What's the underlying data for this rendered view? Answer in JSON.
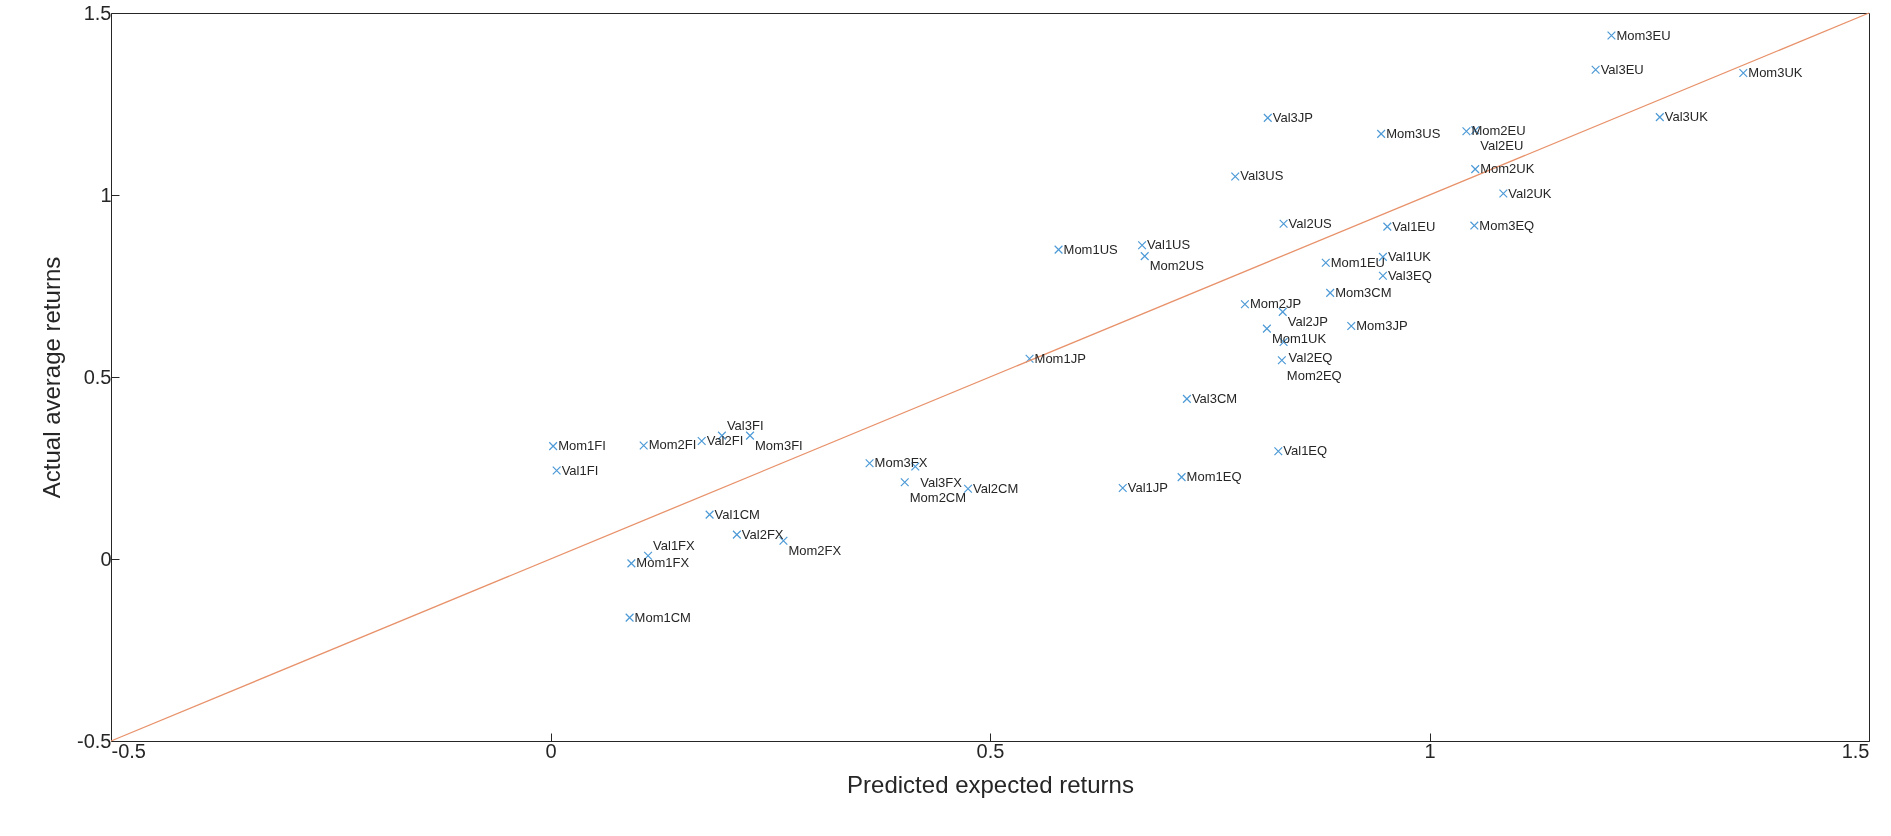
{
  "chart_data": {
    "type": "scatter",
    "xlabel": "Predicted expected returns",
    "ylabel": "Actual average returns",
    "xlim": [
      -0.5,
      1.5
    ],
    "ylim": [
      -0.5,
      1.5
    ],
    "xticks": [
      -0.5,
      0,
      0.5,
      1,
      1.5
    ],
    "yticks": [
      -0.5,
      0,
      0.5,
      1,
      1.5
    ],
    "grid": false,
    "marker": "cross",
    "series": [
      {
        "color": "#4d9ad6",
        "x": [
          1.207,
          1.189,
          1.357,
          1.262,
          0.816,
          0.945,
          1.042,
          1.052,
          1.052,
          1.084,
          0.779,
          0.834,
          0.952,
          1.051,
          0.882,
          0.947,
          0.947,
          0.578,
          0.673,
          0.676,
          0.887,
          0.79,
          0.833,
          0.815,
          0.911,
          0.834,
          0.832,
          0.545,
          0.724,
          0.828,
          0.718,
          0.651,
          0.363,
          0.415,
          0.403,
          0.475,
          0.003,
          0.007,
          0.106,
          0.172,
          0.195,
          0.227,
          0.181,
          0.212,
          0.265,
          0.092,
          0.111,
          0.09
        ],
        "values": [
          1.438,
          1.344,
          1.335,
          1.214,
          1.212,
          1.168,
          1.175,
          1.178,
          1.071,
          1.004,
          1.051,
          0.921,
          0.913,
          0.916,
          0.814,
          0.83,
          0.778,
          0.85,
          0.862,
          0.832,
          0.731,
          0.7,
          0.679,
          0.633,
          0.64,
          0.596,
          0.546,
          0.55,
          0.44,
          0.296,
          0.225,
          0.195,
          0.263,
          0.254,
          0.211,
          0.193,
          0.31,
          0.243,
          0.312,
          0.324,
          0.339,
          0.339,
          0.122,
          0.067,
          0.05,
          -0.012,
          0.009,
          -0.161
        ]
      },
      {
        "type": "line",
        "color": "#e8926b",
        "x": [
          -0.5,
          1.5
        ],
        "values": [
          -0.5,
          1.5
        ],
        "marker": "none"
      }
    ],
    "annotations": [
      {
        "text": "Mom3EU",
        "x": 1.207,
        "y": 1.438
      },
      {
        "text": "Val3EU",
        "x": 1.189,
        "y": 1.344
      },
      {
        "text": "Mom3UK",
        "x": 1.357,
        "y": 1.335
      },
      {
        "text": "Val3UK",
        "x": 1.262,
        "y": 1.214
      },
      {
        "text": "Val3JP",
        "x": 0.816,
        "y": 1.212
      },
      {
        "text": "Mom3US",
        "x": 0.945,
        "y": 1.168
      },
      {
        "text": "Mom2EU",
        "x": 1.042,
        "y": 1.175
      },
      {
        "text": "Val2EU",
        "x": 1.052,
        "y": 1.178
      },
      {
        "text": "Mom2UK",
        "x": 1.052,
        "y": 1.071
      },
      {
        "text": "Val2UK",
        "x": 1.084,
        "y": 1.004
      },
      {
        "text": "Val3US",
        "x": 0.779,
        "y": 1.051
      },
      {
        "text": "Val2US",
        "x": 0.834,
        "y": 0.921
      },
      {
        "text": "Val1EU",
        "x": 0.952,
        "y": 0.913
      },
      {
        "text": "Mom3EQ",
        "x": 1.051,
        "y": 0.916
      },
      {
        "text": "Mom1EU",
        "x": 0.882,
        "y": 0.814
      },
      {
        "text": "Val1UK",
        "x": 0.947,
        "y": 0.83
      },
      {
        "text": "Val3EQ",
        "x": 0.947,
        "y": 0.778
      },
      {
        "text": "Mom1US",
        "x": 0.578,
        "y": 0.85
      },
      {
        "text": "Val1US",
        "x": 0.673,
        "y": 0.862
      },
      {
        "text": "Mom2US",
        "x": 0.676,
        "y": 0.832
      },
      {
        "text": "Mom3CM",
        "x": 0.887,
        "y": 0.731
      },
      {
        "text": "Mom2JP",
        "x": 0.79,
        "y": 0.7
      },
      {
        "text": "Val2JP",
        "x": 0.833,
        "y": 0.679
      },
      {
        "text": "Mom1UK",
        "x": 0.815,
        "y": 0.633
      },
      {
        "text": "Mom3JP",
        "x": 0.911,
        "y": 0.64
      },
      {
        "text": "Val2EQ",
        "x": 0.834,
        "y": 0.596
      },
      {
        "text": "Mom2EQ",
        "x": 0.832,
        "y": 0.546
      },
      {
        "text": "Mom1JP",
        "x": 0.545,
        "y": 0.55
      },
      {
        "text": "Val3CM",
        "x": 0.724,
        "y": 0.44
      },
      {
        "text": "Val1EQ",
        "x": 0.828,
        "y": 0.296
      },
      {
        "text": "Mom1EQ",
        "x": 0.718,
        "y": 0.225
      },
      {
        "text": "Val1JP",
        "x": 0.651,
        "y": 0.195
      },
      {
        "text": "Mom3FX",
        "x": 0.363,
        "y": 0.263
      },
      {
        "text": "Val3FX",
        "x": 0.415,
        "y": 0.254
      },
      {
        "text": "Mom2CM",
        "x": 0.403,
        "y": 0.211
      },
      {
        "text": "Val2CM",
        "x": 0.475,
        "y": 0.193
      },
      {
        "text": "Mom1FI",
        "x": 0.003,
        "y": 0.31
      },
      {
        "text": "Val1FI",
        "x": 0.007,
        "y": 0.243
      },
      {
        "text": "Mom2FI",
        "x": 0.106,
        "y": 0.312
      },
      {
        "text": "Val2FI",
        "x": 0.172,
        "y": 0.324
      },
      {
        "text": "Val3FI",
        "x": 0.195,
        "y": 0.339
      },
      {
        "text": "Mom3FI",
        "x": 0.227,
        "y": 0.339
      },
      {
        "text": "Val1CM",
        "x": 0.181,
        "y": 0.122
      },
      {
        "text": "Val2FX",
        "x": 0.212,
        "y": 0.067
      },
      {
        "text": "Mom2FX",
        "x": 0.265,
        "y": 0.05
      },
      {
        "text": "Mom1FX",
        "x": 0.092,
        "y": -0.012
      },
      {
        "text": "Val1FX",
        "x": 0.111,
        "y": 0.009
      },
      {
        "text": "Mom1CM",
        "x": 0.09,
        "y": -0.161
      }
    ]
  }
}
